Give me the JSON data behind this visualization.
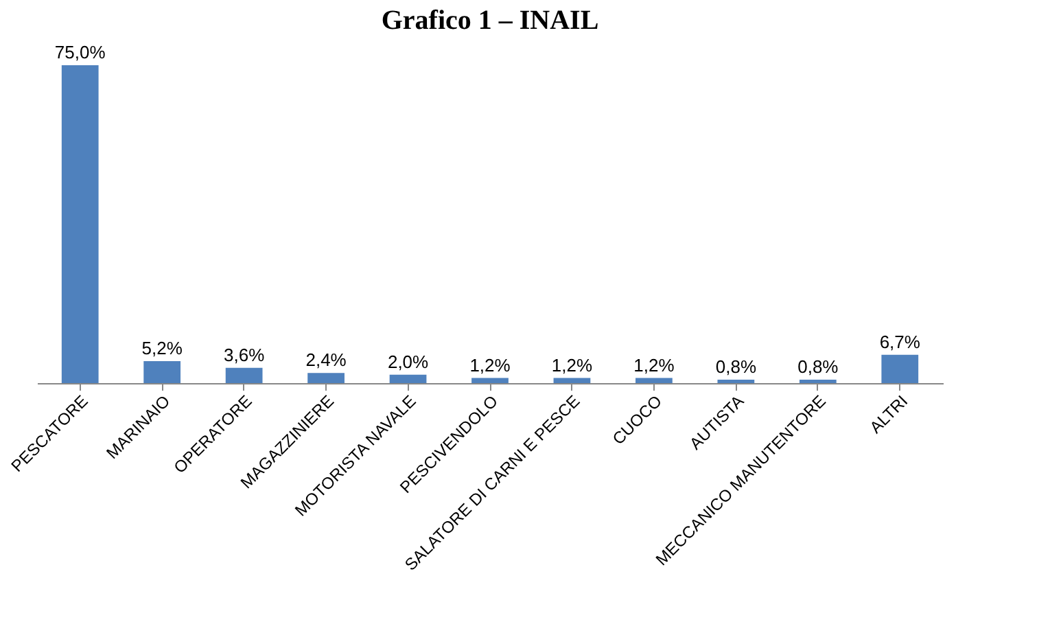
{
  "chart_data": {
    "type": "bar",
    "title": "Grafico 1 – INAIL",
    "categories": [
      "PESCATORE",
      "MARINAIO",
      "OPERATORE",
      "MAGAZZINIERE",
      "MOTORISTA NAVALE",
      "PESCIVENDOLO",
      "SALATORE DI CARNI E PESCE",
      "CUOCO",
      "AUTISTA",
      "MECCANICO MANUTENTORE",
      "ALTRI"
    ],
    "values": [
      75.0,
      5.2,
      3.6,
      2.4,
      2.0,
      1.2,
      1.2,
      1.2,
      0.8,
      0.8,
      6.7
    ],
    "value_labels": [
      "75,0%",
      "5,2%",
      "3,6%",
      "2,4%",
      "2,0%",
      "1,2%",
      "1,2%",
      "1,2%",
      "0,8%",
      "0,8%",
      "6,7%"
    ],
    "color": "#4f81bd",
    "grid": false
  }
}
